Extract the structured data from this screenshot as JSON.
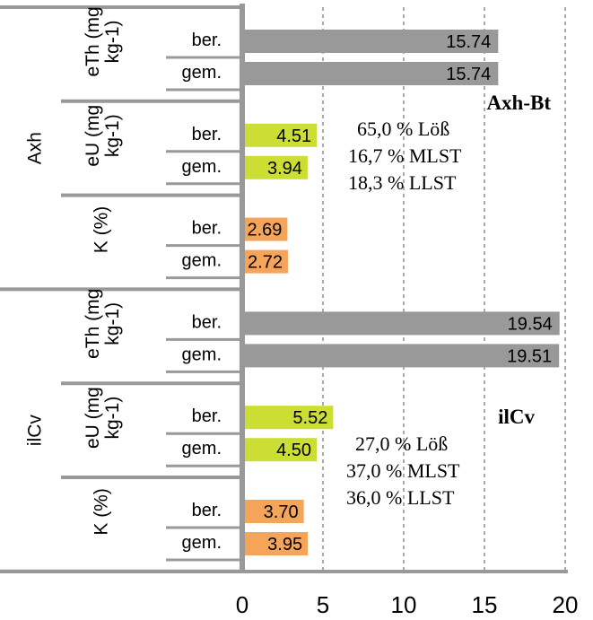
{
  "chart_data": {
    "type": "bar",
    "orientation": "horizontal",
    "xlim": [
      0,
      20
    ],
    "x_ticks": [
      "0",
      "5",
      "10",
      "15",
      "20"
    ],
    "grid": "vertical dashed",
    "groups": [
      {
        "horizon": "Axh",
        "parameters": [
          {
            "name": "eTh (mg kg-1)",
            "rows": [
              {
                "label": "ber.",
                "value": 15.74,
                "value_label": "15.74",
                "color": "#999999"
              },
              {
                "label": "gem.",
                "value": 15.74,
                "value_label": "15.74",
                "color": "#999999"
              }
            ]
          },
          {
            "name": "eU (mg kg-1)",
            "rows": [
              {
                "label": "ber.",
                "value": 4.51,
                "value_label": "4.51",
                "color": "#ccdd33"
              },
              {
                "label": "gem.",
                "value": 3.94,
                "value_label": "3.94",
                "color": "#ccdd33"
              }
            ]
          },
          {
            "name": "K (%)",
            "rows": [
              {
                "label": "ber.",
                "value": 2.69,
                "value_label": "2.69",
                "color": "#f5a55a"
              },
              {
                "label": "gem.",
                "value": 2.72,
                "value_label": "2.72",
                "color": "#f5a55a"
              }
            ]
          }
        ]
      },
      {
        "horizon": "ilCv",
        "parameters": [
          {
            "name": "eTh (mg kg-1)",
            "rows": [
              {
                "label": "ber.",
                "value": 19.54,
                "value_label": "19.54",
                "color": "#999999"
              },
              {
                "label": "gem.",
                "value": 19.51,
                "value_label": "19.51",
                "color": "#999999"
              }
            ]
          },
          {
            "name": "eU (mg kg-1)",
            "rows": [
              {
                "label": "ber.",
                "value": 5.52,
                "value_label": "5.52",
                "color": "#ccdd33"
              },
              {
                "label": "gem.",
                "value": 4.5,
                "value_label": "4.50",
                "color": "#ccdd33"
              }
            ]
          },
          {
            "name": "K (%)",
            "rows": [
              {
                "label": "ber.",
                "value": 3.7,
                "value_label": "3.70",
                "color": "#f5a55a"
              },
              {
                "label": "gem.",
                "value": 3.95,
                "value_label": "3.95",
                "color": "#f5a55a"
              }
            ]
          }
        ]
      }
    ],
    "annotations": [
      {
        "title": "Axh-Bt",
        "lines": [
          "65,0 % Löß",
          "16,7 % MLST",
          "18,3 %  LLST"
        ]
      },
      {
        "title": "ilCv",
        "lines": [
          "27,0 % Löß",
          "37,0 % MLST",
          "36,0 %  LLST"
        ]
      }
    ]
  }
}
